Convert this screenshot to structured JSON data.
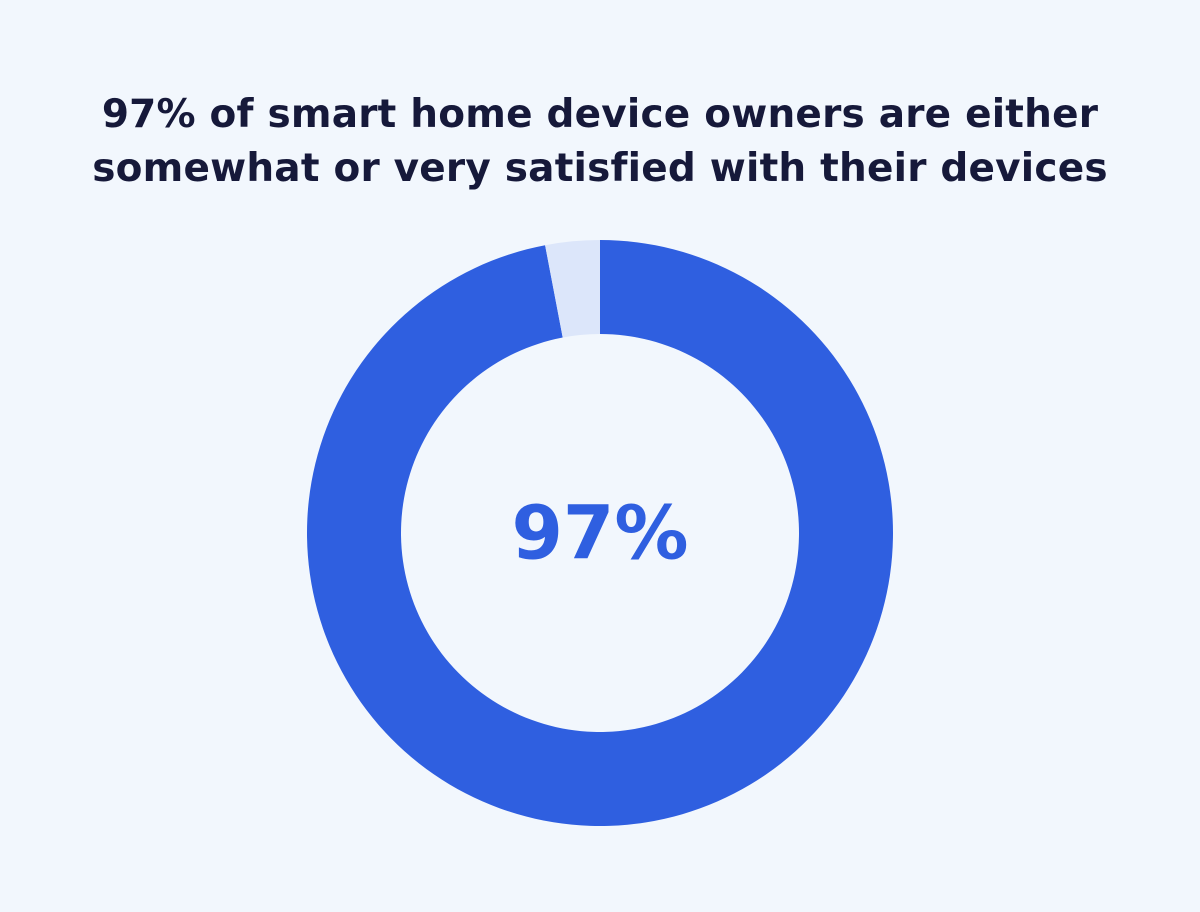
{
  "chart_data": {
    "type": "donut",
    "title": "97% of smart home device owners are either somewhat or very satisfied with their devices",
    "values": [
      97,
      3
    ],
    "colors": [
      "#2f5fe0",
      "#dce6fa"
    ],
    "center_label": "97%",
    "center_label_color": "#2f5fe0"
  }
}
